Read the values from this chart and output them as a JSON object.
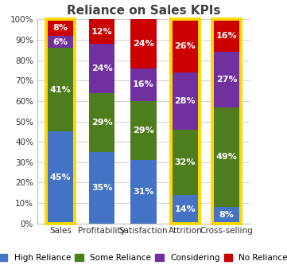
{
  "title": "Reliance on Sales KPIs",
  "categories": [
    "Sales",
    "Profitability",
    "Satisfaction",
    "Attrition",
    "Cross-selling"
  ],
  "series": {
    "High Reliance": [
      45,
      35,
      31,
      14,
      8
    ],
    "Some Reliance": [
      41,
      29,
      29,
      32,
      49
    ],
    "Considering": [
      6,
      24,
      16,
      28,
      27
    ],
    "No Reliance": [
      8,
      12,
      24,
      26,
      16
    ]
  },
  "colors": {
    "High Reliance": "#4472C4",
    "Some Reliance": "#4E7D1E",
    "Considering": "#7030A0",
    "No Reliance": "#CC0000"
  },
  "highlight_bars": [
    0,
    3,
    4
  ],
  "highlight_color": "#FFD700",
  "legend_order": [
    "High Reliance",
    "Some Reliance",
    "Considering",
    "No Reliance"
  ],
  "ylim": [
    0,
    100
  ],
  "yticks": [
    0,
    10,
    20,
    30,
    40,
    50,
    60,
    70,
    80,
    90,
    100
  ],
  "ytick_labels": [
    "0%",
    "10%",
    "20%",
    "30%",
    "40%",
    "50%",
    "60%",
    "70%",
    "80%",
    "90%",
    "100%"
  ],
  "background_color": "#FFFFFF",
  "plot_bg_color": "#FFFFFF",
  "grid_color": "#D0D0D0",
  "title_fontsize": 11,
  "label_fontsize": 8,
  "tick_fontsize": 7.5,
  "legend_fontsize": 7.5,
  "bar_width": 0.62
}
